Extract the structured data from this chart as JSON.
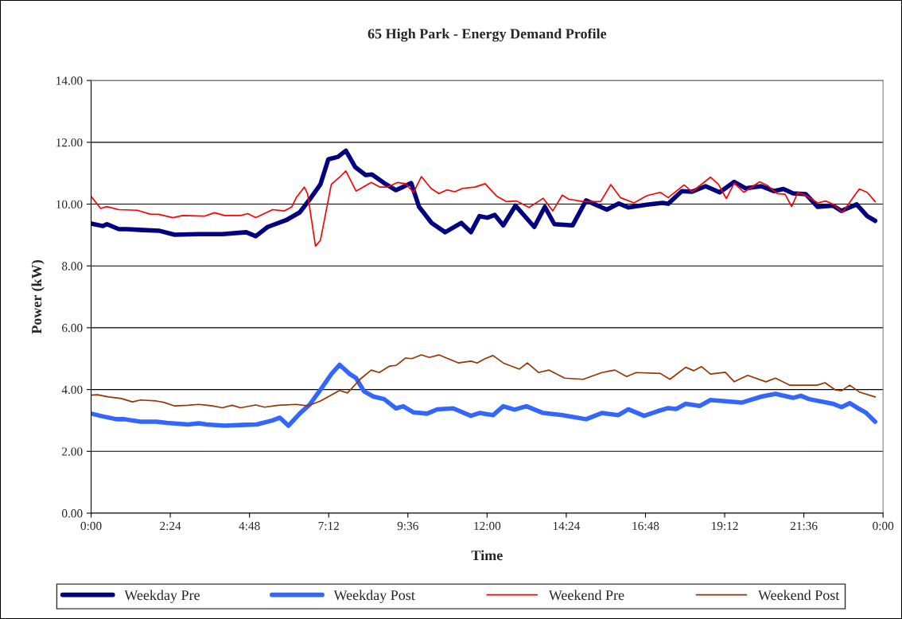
{
  "chart_data": {
    "type": "line",
    "title": "65 High Park - Energy Demand Profile",
    "xlabel": "Time",
    "ylabel": "Power (kW)",
    "xlim": [
      0,
      24
    ],
    "xticks": [
      {
        "value": 0,
        "label": "0:00"
      },
      {
        "value": 2.4,
        "label": "2:24"
      },
      {
        "value": 4.8,
        "label": "4:48"
      },
      {
        "value": 7.2,
        "label": "7:12"
      },
      {
        "value": 9.6,
        "label": "9:36"
      },
      {
        "value": 12,
        "label": "12:00"
      },
      {
        "value": 14.4,
        "label": "14:24"
      },
      {
        "value": 16.8,
        "label": "16:48"
      },
      {
        "value": 19.2,
        "label": "19:12"
      },
      {
        "value": 21.6,
        "label": "21:36"
      },
      {
        "value": 24,
        "label": "0:00"
      }
    ],
    "ylim": [
      0,
      14
    ],
    "yticks": [
      {
        "value": 0,
        "label": "0.00"
      },
      {
        "value": 2,
        "label": "2.00"
      },
      {
        "value": 4,
        "label": "4.00"
      },
      {
        "value": 6,
        "label": "6.00"
      },
      {
        "value": 8,
        "label": "8.00"
      },
      {
        "value": 10,
        "label": "10.00"
      },
      {
        "value": 12,
        "label": "12.00"
      },
      {
        "value": 14,
        "label": "14.00"
      }
    ],
    "grid": "y",
    "legend": "bottom",
    "marker": "none",
    "line_style": "solid",
    "series": [
      {
        "name": "Weekday Pre",
        "color": "#000080",
        "x": [
          0,
          0.36,
          0.48,
          0.84,
          1.09,
          1.57,
          2.05,
          2.53,
          3.26,
          3.98,
          4.7,
          4.99,
          5.35,
          5.91,
          6.32,
          6.63,
          6.95,
          7.19,
          7.48,
          7.72,
          8.01,
          8.32,
          8.51,
          8.88,
          9.24,
          9.7,
          9.94,
          10.32,
          10.73,
          11.22,
          11.51,
          11.77,
          12.01,
          12.23,
          12.49,
          12.86,
          13.43,
          13.75,
          14.04,
          14.59,
          15.0,
          15.63,
          15.99,
          16.28,
          16.84,
          17.32,
          17.49,
          17.9,
          18.21,
          18.62,
          19.05,
          19.49,
          19.83,
          20.31,
          20.69,
          20.98,
          21.27,
          21.66,
          22.02,
          22.48,
          22.74,
          23.2,
          23.52,
          23.76
        ],
        "values": [
          9.37,
          9.29,
          9.35,
          9.19,
          9.19,
          9.16,
          9.14,
          9.01,
          9.03,
          9.03,
          9.09,
          8.96,
          9.26,
          9.48,
          9.73,
          10.16,
          10.64,
          11.45,
          11.53,
          11.73,
          11.19,
          10.94,
          10.96,
          10.68,
          10.45,
          10.68,
          9.91,
          9.39,
          9.09,
          9.39,
          9.09,
          9.61,
          9.56,
          9.65,
          9.31,
          9.95,
          9.26,
          9.91,
          9.35,
          9.31,
          10.12,
          9.82,
          10.02,
          9.89,
          9.98,
          10.04,
          10.01,
          10.42,
          10.4,
          10.58,
          10.38,
          10.72,
          10.51,
          10.58,
          10.42,
          10.49,
          10.35,
          10.32,
          9.91,
          9.95,
          9.78,
          9.99,
          9.61,
          9.46
        ]
      },
      {
        "name": "Weekday Post",
        "color": "#3366ff",
        "x": [
          0,
          0.36,
          0.77,
          1.01,
          1.5,
          1.98,
          2.29,
          2.94,
          3.26,
          3.5,
          4.05,
          4.7,
          5.02,
          5.5,
          5.72,
          5.98,
          6.32,
          6.63,
          6.95,
          7.28,
          7.53,
          7.84,
          8.03,
          8.27,
          8.56,
          8.88,
          9.24,
          9.46,
          9.77,
          10.18,
          10.49,
          10.97,
          11.51,
          11.77,
          12.18,
          12.49,
          12.83,
          13.19,
          13.7,
          14.28,
          15.0,
          15.48,
          15.97,
          16.28,
          16.76,
          17.17,
          17.49,
          17.73,
          18.02,
          18.45,
          18.77,
          19.73,
          20.31,
          20.74,
          21.27,
          21.51,
          21.76,
          22.48,
          22.74,
          22.99,
          23.28,
          23.47,
          23.76
        ],
        "values": [
          3.22,
          3.13,
          3.04,
          3.04,
          2.96,
          2.96,
          2.92,
          2.87,
          2.91,
          2.87,
          2.83,
          2.86,
          2.87,
          3.0,
          3.09,
          2.83,
          3.22,
          3.52,
          3.99,
          4.5,
          4.8,
          4.5,
          4.37,
          3.94,
          3.77,
          3.69,
          3.39,
          3.46,
          3.26,
          3.22,
          3.36,
          3.39,
          3.15,
          3.24,
          3.17,
          3.46,
          3.35,
          3.46,
          3.24,
          3.17,
          3.04,
          3.24,
          3.17,
          3.36,
          3.15,
          3.3,
          3.4,
          3.37,
          3.54,
          3.47,
          3.66,
          3.58,
          3.77,
          3.86,
          3.73,
          3.8,
          3.69,
          3.54,
          3.43,
          3.56,
          3.37,
          3.26,
          2.96
        ]
      },
      {
        "name": "Weekend Pre",
        "color": "#ff0000",
        "x": [
          0,
          0.29,
          0.48,
          0.84,
          1.4,
          1.81,
          2.05,
          2.48,
          2.77,
          3.43,
          3.74,
          4.05,
          4.53,
          4.75,
          4.99,
          5.5,
          5.86,
          6.08,
          6.22,
          6.46,
          6.56,
          6.8,
          6.95,
          7.28,
          7.53,
          7.72,
          8.03,
          8.49,
          8.76,
          8.97,
          9.29,
          9.53,
          9.77,
          10.01,
          10.3,
          10.54,
          10.78,
          11.02,
          11.26,
          11.63,
          11.94,
          12.3,
          12.59,
          12.9,
          13.27,
          13.7,
          13.99,
          14.28,
          14.47,
          14.91,
          15.44,
          15.75,
          16.04,
          16.45,
          16.84,
          17.25,
          17.49,
          17.97,
          18.21,
          18.77,
          19.01,
          19.25,
          19.49,
          19.78,
          20.26,
          20.5,
          20.79,
          21.03,
          21.23,
          21.42,
          21.64,
          22.02,
          22.26,
          22.5,
          22.77,
          23.28,
          23.52,
          23.76
        ],
        "values": [
          10.25,
          9.86,
          9.92,
          9.82,
          9.8,
          9.67,
          9.67,
          9.56,
          9.63,
          9.61,
          9.72,
          9.63,
          9.63,
          9.69,
          9.56,
          9.82,
          9.78,
          9.91,
          10.21,
          10.55,
          10.34,
          8.64,
          8.83,
          10.64,
          10.87,
          11.07,
          10.42,
          10.7,
          10.55,
          10.55,
          10.7,
          10.66,
          10.38,
          10.89,
          10.51,
          10.34,
          10.46,
          10.4,
          10.51,
          10.55,
          10.66,
          10.25,
          10.08,
          10.1,
          9.89,
          10.19,
          9.78,
          10.29,
          10.16,
          10.08,
          10.08,
          10.63,
          10.21,
          10.04,
          10.27,
          10.38,
          10.21,
          10.62,
          10.4,
          10.87,
          10.64,
          10.18,
          10.68,
          10.38,
          10.72,
          10.6,
          10.34,
          10.32,
          9.92,
          10.38,
          10.29,
          10.04,
          10.1,
          9.99,
          9.73,
          10.49,
          10.38,
          10.08
        ]
      },
      {
        "name": "Weekend Post",
        "color": "#993300",
        "x": [
          0,
          0.19,
          0.53,
          0.92,
          1.25,
          1.5,
          1.98,
          2.22,
          2.53,
          2.94,
          3.26,
          3.67,
          3.98,
          4.27,
          4.53,
          4.99,
          5.26,
          5.67,
          6.22,
          6.56,
          6.95,
          7.53,
          7.77,
          8.15,
          8.49,
          8.73,
          9.05,
          9.24,
          9.53,
          9.72,
          10.01,
          10.25,
          10.54,
          11.14,
          11.51,
          11.7,
          11.94,
          12.18,
          12.49,
          12.98,
          13.22,
          13.56,
          13.87,
          14.35,
          14.91,
          15.48,
          15.87,
          16.23,
          16.52,
          17.25,
          17.54,
          18.02,
          18.26,
          18.5,
          18.77,
          19.22,
          19.49,
          19.9,
          20.45,
          20.74,
          21.18,
          22.0,
          22.24,
          22.55,
          22.74,
          22.99,
          23.28,
          23.76
        ],
        "values": [
          3.82,
          3.83,
          3.76,
          3.71,
          3.6,
          3.66,
          3.63,
          3.58,
          3.47,
          3.49,
          3.52,
          3.47,
          3.41,
          3.49,
          3.41,
          3.5,
          3.43,
          3.49,
          3.52,
          3.47,
          3.63,
          3.97,
          3.89,
          4.33,
          4.63,
          4.55,
          4.76,
          4.78,
          5.02,
          5.0,
          5.12,
          5.04,
          5.12,
          4.86,
          4.92,
          4.86,
          5.0,
          5.1,
          4.86,
          4.66,
          4.86,
          4.55,
          4.63,
          4.37,
          4.33,
          4.55,
          4.63,
          4.42,
          4.55,
          4.52,
          4.33,
          4.72,
          4.61,
          4.74,
          4.5,
          4.56,
          4.25,
          4.46,
          4.25,
          4.37,
          4.14,
          4.14,
          4.22,
          3.99,
          3.96,
          4.14,
          3.92,
          3.76
        ]
      }
    ]
  }
}
